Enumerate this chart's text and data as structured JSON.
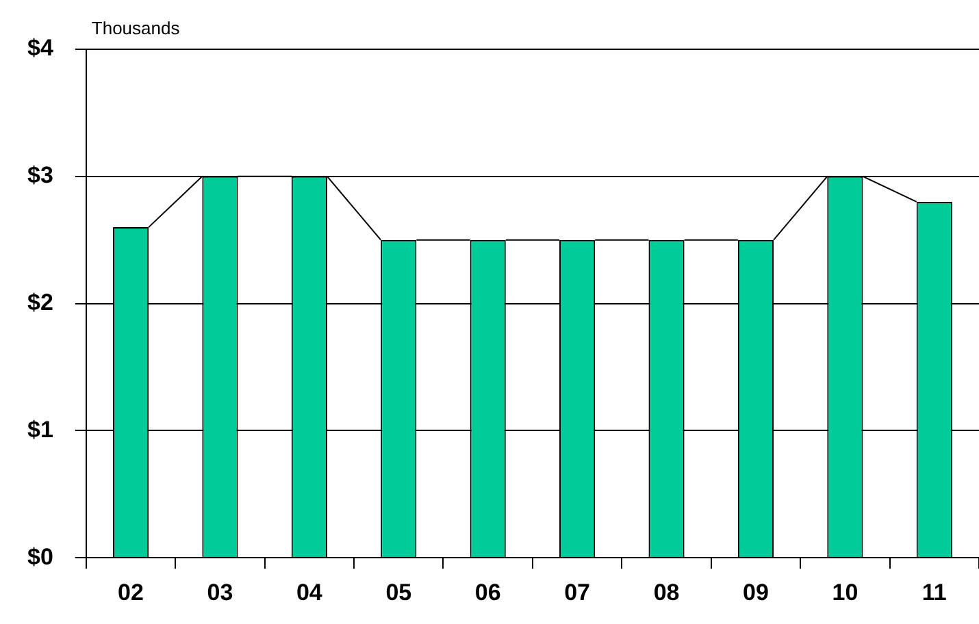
{
  "chart_data": {
    "type": "bar",
    "ylabel": "Thousands",
    "categories": [
      "02",
      "03",
      "04",
      "05",
      "06",
      "07",
      "08",
      "09",
      "10",
      "11"
    ],
    "values": [
      2.6,
      3,
      3,
      2.5,
      2.5,
      2.5,
      2.5,
      2.5,
      3,
      2.8
    ],
    "color": "#00cc99",
    "ylim": [
      0,
      4
    ],
    "yticks": [
      {
        "value": 0,
        "label": "$0"
      },
      {
        "value": 1,
        "label": "$1"
      },
      {
        "value": 2,
        "label": "$2"
      },
      {
        "value": 3,
        "label": "$3"
      },
      {
        "value": 4,
        "label": "$4"
      }
    ],
    "grid": "y",
    "legend": false
  }
}
